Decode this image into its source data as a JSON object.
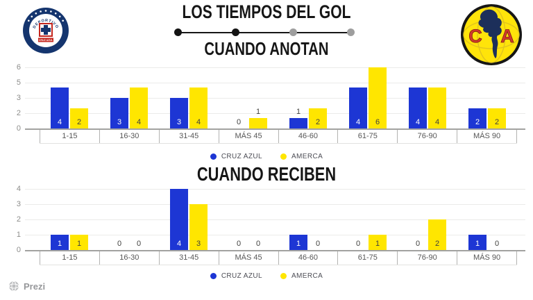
{
  "page": {
    "title": "LOS TIEMPOS DEL GOL",
    "brand": "Prezi"
  },
  "timeline": {
    "dots": [
      {
        "color": "#141414"
      },
      {
        "color": "#141414"
      },
      {
        "color": "#9e9e9e"
      },
      {
        "color": "#9e9e9e"
      }
    ]
  },
  "legend": {
    "items": [
      {
        "label": "CRUZ AZUL",
        "color": "#1d36d4"
      },
      {
        "label": "AMERCA",
        "color": "#ffe600"
      }
    ]
  },
  "logos": {
    "cruz_azul": {
      "top_text": "DEPORTIVO",
      "banner_text": "CRUZ AZUL",
      "bottom_text": "MÉXICO"
    },
    "america": {
      "left_letter": "C",
      "right_letter": "A"
    }
  },
  "chart_data": [
    {
      "type": "bar",
      "title": "CUANDO ANOTAN",
      "categories": [
        "1-15",
        "16-30",
        "31-45",
        "MÁS 45",
        "46-60",
        "61-75",
        "76-90",
        "MÁS 90"
      ],
      "series": [
        {
          "name": "CRUZ AZUL",
          "color": "#1d36d4",
          "value_label_inside_color": "#ffffff",
          "values": [
            4,
            3,
            3,
            0,
            1,
            4,
            4,
            2
          ]
        },
        {
          "name": "AMERCA",
          "color": "#ffe600",
          "value_label_inside_color": "#3f3f3d",
          "values": [
            2,
            4,
            4,
            1,
            2,
            6,
            4,
            2
          ]
        }
      ],
      "ylim": [
        0,
        6
      ],
      "y_tick_labels": [
        "6",
        "5",
        "3",
        "2",
        "0"
      ],
      "grid": true,
      "legend_position": "bottom",
      "xlabel": "",
      "ylabel": ""
    },
    {
      "type": "bar",
      "title": "CUANDO RECIBEN",
      "categories": [
        "1-15",
        "16-30",
        "31-45",
        "MÁS 45",
        "46-60",
        "61-75",
        "76-90",
        "MÁS 90"
      ],
      "series": [
        {
          "name": "CRUZ AZUL",
          "color": "#1d36d4",
          "value_label_inside_color": "#ffffff",
          "values": [
            1,
            0,
            4,
            0,
            1,
            0,
            0,
            1
          ]
        },
        {
          "name": "AMERCA",
          "color": "#ffe600",
          "value_label_inside_color": "#3f3f3d",
          "values": [
            1,
            0,
            3,
            0,
            0,
            1,
            2,
            0
          ]
        }
      ],
      "ylim": [
        0,
        4
      ],
      "y_tick_labels": [
        "4",
        "3",
        "2",
        "1",
        "0"
      ],
      "grid": true,
      "legend_position": "bottom",
      "xlabel": "",
      "ylabel": ""
    }
  ]
}
